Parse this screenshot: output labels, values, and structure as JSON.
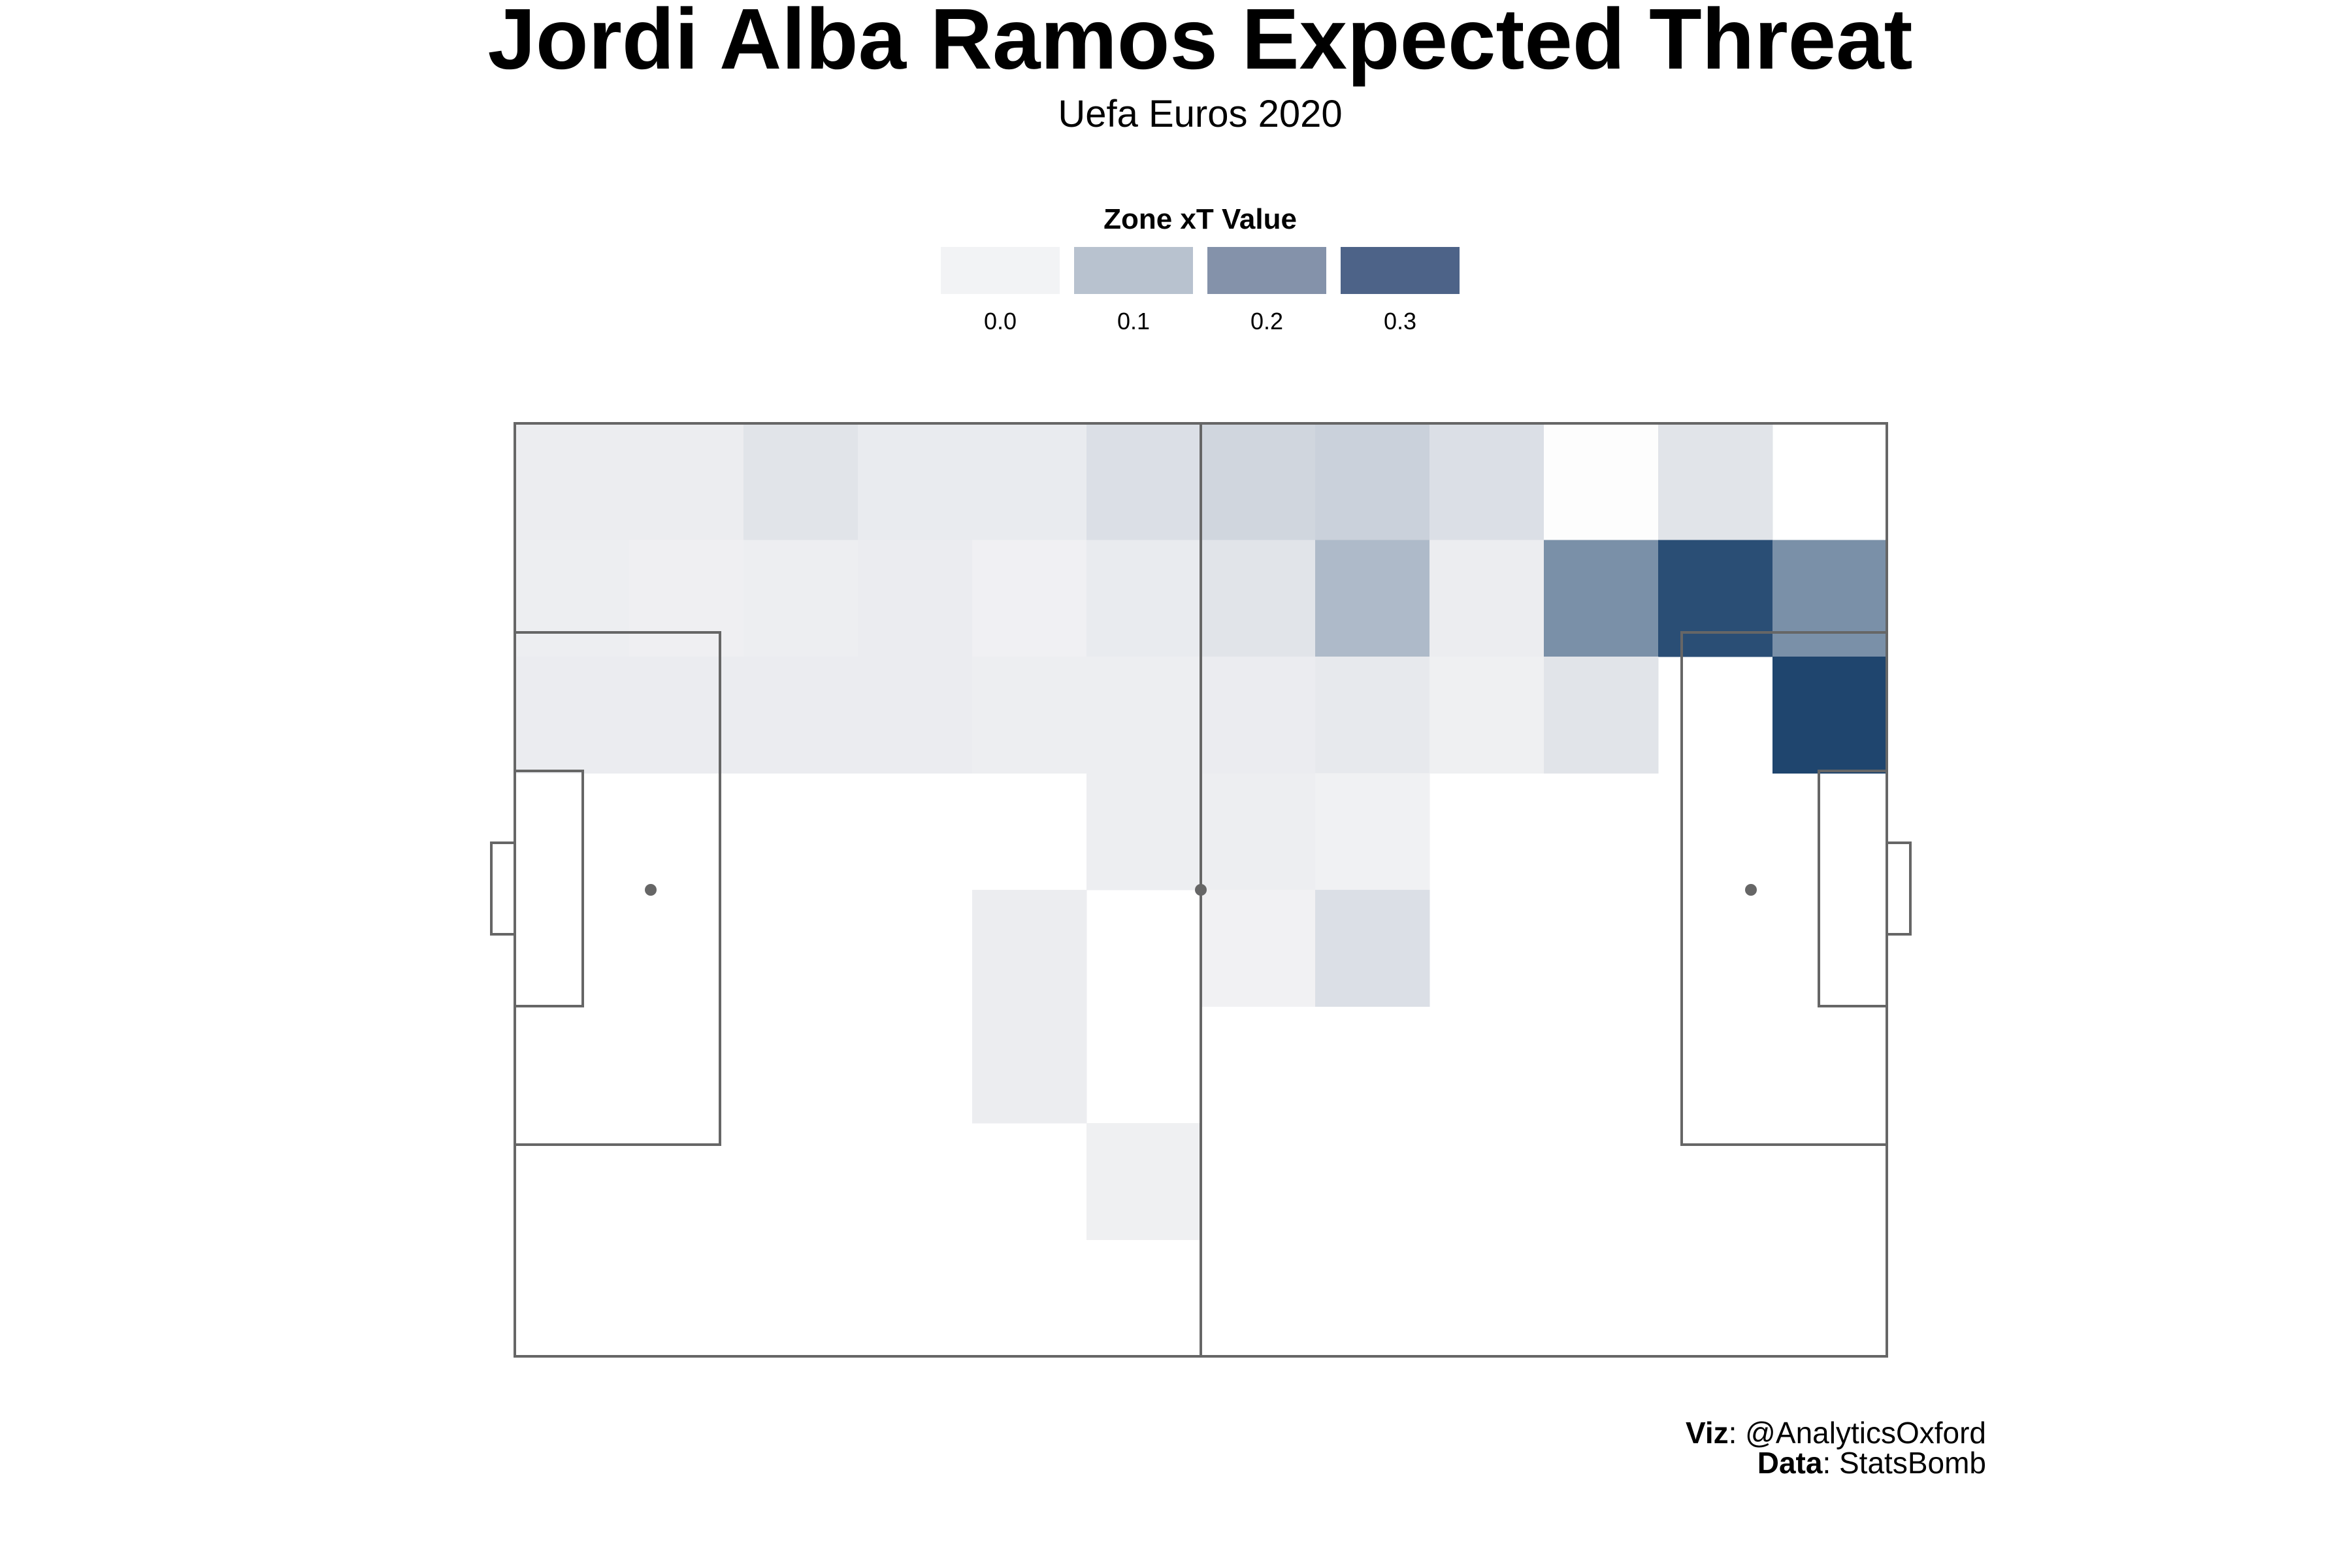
{
  "title": "Jordi Alba Ramos Expected Threat",
  "subtitle": "Uefa Euros 2020",
  "colors": {
    "low": "#f2f2f4",
    "high": "#1f456e",
    "lines": "#666666"
  },
  "legend": {
    "title": "Zone xT Value",
    "items": [
      {
        "label": "0.0",
        "color": "#f2f3f5"
      },
      {
        "label": "0.1",
        "color": "#b8c2cf"
      },
      {
        "label": "0.2",
        "color": "#8492aa"
      },
      {
        "label": "0.3",
        "color": "#4d6388"
      }
    ]
  },
  "caption": {
    "viz_key": "Viz",
    "viz_value": ": @AnalyticsOxford",
    "data_key": "Data",
    "data_value": ": StatsBomb"
  },
  "chart_data": {
    "type": "heatmap",
    "title": "Jordi Alba Ramos Expected Threat",
    "subtitle": "Uefa Euros 2020",
    "legend_title": "Zone xT Value",
    "legend_placement": "top-center",
    "grid": false,
    "columns": 12,
    "rows": 8,
    "values": [
      [
        0.01,
        0.01,
        0.03,
        0.015,
        0.015,
        0.04,
        0.06,
        0.07,
        0.04,
        0.0,
        0.03,
        null
      ],
      [
        0.008,
        0.006,
        0.008,
        0.012,
        0.004,
        0.015,
        0.03,
        0.12,
        0.01,
        0.21,
        0.35,
        0.21
      ],
      [
        0.012,
        0.012,
        0.012,
        0.012,
        0.008,
        0.008,
        0.012,
        0.02,
        0.005,
        0.03,
        null,
        0.37
      ],
      [
        null,
        null,
        null,
        null,
        null,
        0.008,
        0.008,
        0.003,
        null,
        null,
        null,
        null
      ],
      [
        null,
        null,
        null,
        null,
        0.01,
        null,
        0.002,
        0.04,
        null,
        null,
        null,
        null
      ],
      [
        null,
        null,
        null,
        null,
        0.01,
        null,
        null,
        null,
        null,
        null,
        null,
        null
      ],
      [
        null,
        null,
        null,
        null,
        null,
        0.005,
        null,
        null,
        null,
        null,
        null,
        null
      ],
      [
        null,
        null,
        null,
        null,
        null,
        null,
        null,
        null,
        null,
        null,
        null,
        null
      ]
    ]
  }
}
